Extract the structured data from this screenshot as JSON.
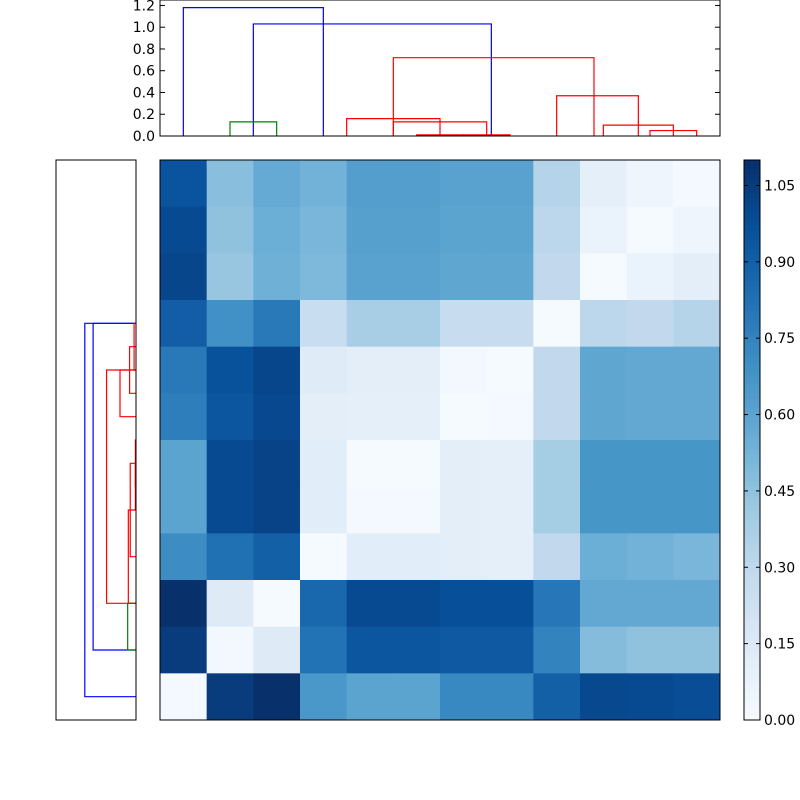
{
  "chart_data": [
    {
      "type": "dendrogram",
      "orientation": "top",
      "ylim": [
        0,
        1.25
      ],
      "yticks": [
        "0.0",
        "0.2",
        "0.4",
        "0.6",
        "0.8",
        "1.0",
        "1.2"
      ],
      "leaf_count": 12,
      "colors": {
        "blue": "#0000ff",
        "green": "#008000",
        "red": "#ff0000"
      },
      "links": [
        {
          "a": 0.5,
          "b": 3.5,
          "h": 1.18,
          "color": "#0000ff"
        },
        {
          "a": 2.0,
          "b": 7.1,
          "h": 1.03,
          "color": "#0000ff"
        },
        {
          "a": 1.5,
          "b": 2.5,
          "h": 0.13,
          "color": "#008000"
        },
        {
          "a": 5.0,
          "b": 9.3,
          "h": 0.72,
          "color": "#ff0000"
        },
        {
          "a": 4.0,
          "b": 6.0,
          "h": 0.16,
          "color": "#ff0000"
        },
        {
          "a": 5.5,
          "b": 6.5,
          "h": 0.01,
          "color": "#ff0000"
        },
        {
          "a": 5.0,
          "b": 7.0,
          "h": 0.13,
          "color": "#ff0000"
        },
        {
          "a": 6.5,
          "b": 7.5,
          "h": 0.01,
          "color": "#ff0000"
        },
        {
          "a": 8.5,
          "b": 10.25,
          "h": 0.37,
          "color": "#ff0000"
        },
        {
          "a": 9.5,
          "b": 11.0,
          "h": 0.1,
          "color": "#ff0000"
        },
        {
          "a": 10.5,
          "b": 11.5,
          "h": 0.05,
          "color": "#ff0000"
        }
      ]
    },
    {
      "type": "dendrogram",
      "orientation": "left",
      "xlim": [
        1.25,
        0
      ],
      "leaf_count": 12,
      "links": [
        {
          "a": 0.5,
          "b": 8.5,
          "h": 0.8,
          "color": "#0000ff"
        },
        {
          "a": 1.5,
          "b": 8.5,
          "h": 0.67,
          "color": "#0000ff"
        },
        {
          "a": 2.5,
          "b": 7.5,
          "h": 0.46,
          "color": "#ff0000"
        },
        {
          "a": 6.5,
          "b": 7.5,
          "h": 0.25,
          "color": "#ff0000"
        },
        {
          "a": 7.0,
          "b": 8.0,
          "h": 0.1,
          "color": "#ff0000"
        },
        {
          "a": 7.5,
          "b": 8.5,
          "h": 0.03,
          "color": "#ff0000"
        },
        {
          "a": 2.5,
          "b": 4.5,
          "h": 0.12,
          "color": "#ff0000"
        },
        {
          "a": 3.5,
          "b": 5.5,
          "h": 0.09,
          "color": "#ff0000"
        },
        {
          "a": 4.5,
          "b": 5.5,
          "h": 0.01,
          "color": "#ff0000"
        },
        {
          "a": 5.0,
          "b": 6.0,
          "h": 0.01,
          "color": "#ff0000"
        },
        {
          "a": 1.5,
          "b": 2.5,
          "h": 0.13,
          "color": "#008000"
        }
      ]
    },
    {
      "type": "heatmap",
      "rows": 12,
      "cols": 12,
      "colormap": "Blues",
      "vmin": 0,
      "vmax": 1.1,
      "values": [
        [
          0.95,
          0.47,
          0.57,
          0.53,
          0.63,
          0.63,
          0.61,
          0.61,
          0.33,
          0.1,
          0.05,
          0.02
        ],
        [
          0.99,
          0.45,
          0.55,
          0.51,
          0.62,
          0.62,
          0.6,
          0.6,
          0.31,
          0.07,
          0.01,
          0.05
        ],
        [
          1.01,
          0.43,
          0.54,
          0.5,
          0.61,
          0.61,
          0.59,
          0.59,
          0.29,
          0.01,
          0.07,
          0.11
        ],
        [
          0.91,
          0.69,
          0.79,
          0.26,
          0.38,
          0.38,
          0.27,
          0.27,
          0.01,
          0.31,
          0.29,
          0.33
        ],
        [
          0.79,
          0.96,
          1.01,
          0.13,
          0.11,
          0.11,
          0.03,
          0.01,
          0.29,
          0.59,
          0.58,
          0.58
        ],
        [
          0.77,
          0.94,
          1.0,
          0.11,
          0.1,
          0.1,
          0.01,
          0.02,
          0.29,
          0.59,
          0.58,
          0.58
        ],
        [
          0.6,
          0.99,
          1.02,
          0.12,
          0.01,
          0.01,
          0.11,
          0.1,
          0.39,
          0.67,
          0.67,
          0.67
        ],
        [
          0.6,
          0.99,
          1.02,
          0.12,
          0.02,
          0.02,
          0.11,
          0.1,
          0.39,
          0.67,
          0.67,
          0.67
        ],
        [
          0.71,
          0.83,
          0.9,
          0.01,
          0.12,
          0.12,
          0.11,
          0.1,
          0.29,
          0.55,
          0.53,
          0.51
        ],
        [
          1.1,
          0.14,
          0.01,
          0.87,
          0.99,
          0.99,
          0.97,
          0.97,
          0.8,
          0.58,
          0.58,
          0.58
        ],
        [
          1.05,
          0.03,
          0.14,
          0.82,
          0.94,
          0.94,
          0.93,
          0.93,
          0.75,
          0.48,
          0.45,
          0.45
        ],
        [
          0.02,
          1.05,
          1.1,
          0.66,
          0.6,
          0.6,
          0.73,
          0.73,
          0.9,
          1.0,
          0.99,
          0.98
        ]
      ],
      "colorbar": {
        "ticks": [
          0.0,
          0.15,
          0.3,
          0.45,
          0.6,
          0.75,
          0.9,
          1.05
        ],
        "ticklabels": [
          "0.00",
          "0.15",
          "0.30",
          "0.45",
          "0.60",
          "0.75",
          "0.90",
          "1.05"
        ]
      }
    }
  ]
}
